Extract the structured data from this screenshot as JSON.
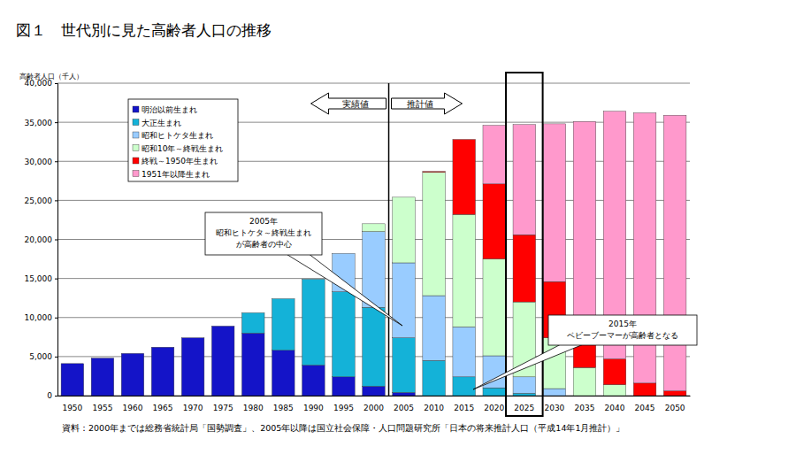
{
  "chart_data": {
    "type": "bar",
    "title": "図１　世代別に見た高齢者人口の推移",
    "y_label": "高齢者人口（千人）",
    "source": "資料：2000年までは総務省統計局「国勢調査」、2005年以降は国立社会保障・人口問題研究所「日本の将来推計人口（平成14年1月推計）」",
    "stacked": true,
    "grid": true,
    "legend": "top-left",
    "categories": [
      "1950",
      "1955",
      "1960",
      "1965",
      "1970",
      "1975",
      "1980",
      "1985",
      "1990",
      "1995",
      "2000",
      "2005",
      "2010",
      "2015",
      "2020",
      "2025",
      "2030",
      "2035",
      "2040",
      "2045",
      "2050"
    ],
    "ylim": [
      0,
      40000
    ],
    "yticks": [
      0,
      {
        "value": 5000,
        "label": "5,000"
      },
      {
        "value": 10000,
        "label": "10,000"
      },
      {
        "value": 15000,
        "label": "15,000"
      },
      {
        "value": 20000,
        "label": "20,000"
      },
      {
        "value": 25000,
        "label": "25,000"
      },
      {
        "value": 30000,
        "label": "30,000"
      },
      {
        "value": 35000,
        "label": "35,000"
      },
      {
        "value": 40000,
        "label": "40,000"
      }
    ],
    "series": [
      {
        "name": "明治以前生まれ",
        "color": "#1414c8",
        "values": [
          4100,
          4800,
          5400,
          6200,
          7400,
          8900,
          8000,
          5800,
          3900,
          2400,
          1200,
          400,
          0,
          0,
          0,
          0,
          0,
          0,
          0,
          0,
          0
        ]
      },
      {
        "name": "大正生まれ",
        "color": "#14b2d8",
        "values": [
          0,
          0,
          0,
          0,
          0,
          0,
          2600,
          6600,
          11000,
          10900,
          10100,
          7000,
          4500,
          2400,
          1000,
          300,
          0,
          0,
          0,
          0,
          0
        ]
      },
      {
        "name": "昭和ヒトケタ生まれ",
        "color": "#99ccff",
        "values": [
          0,
          0,
          0,
          0,
          0,
          0,
          0,
          0,
          0,
          4900,
          9700,
          9600,
          8300,
          6400,
          4100,
          2100,
          900,
          0,
          0,
          0,
          0
        ]
      },
      {
        "name": "昭和10年～終戦生まれ",
        "color": "#ccffcc",
        "values": [
          0,
          0,
          0,
          0,
          0,
          0,
          0,
          0,
          0,
          0,
          1000,
          8400,
          15800,
          14400,
          12400,
          9600,
          6500,
          3600,
          1400,
          0,
          0
        ]
      },
      {
        "name": "終戦～1950年生まれ",
        "color": "#ff0000",
        "values": [
          0,
          0,
          0,
          0,
          0,
          0,
          0,
          0,
          0,
          0,
          0,
          0,
          100,
          9600,
          9600,
          8600,
          7200,
          5500,
          3300,
          1600,
          600
        ]
      },
      {
        "name": "1951年以降生まれ",
        "color": "#ff99cc",
        "values": [
          0,
          0,
          0,
          0,
          0,
          0,
          0,
          0,
          0,
          0,
          0,
          0,
          0,
          0,
          7500,
          14100,
          20200,
          26000,
          31700,
          34600,
          35300
        ]
      }
    ],
    "annotations": [
      {
        "text": "実績値"
      },
      {
        "text": "推計値"
      },
      {
        "lines": [
          "2005年",
          "昭和ヒトケタ～終戦生まれ",
          "が高齢者の中心"
        ]
      },
      {
        "lines": [
          "2015年",
          "ベビーブーマーが高齢者となる"
        ]
      }
    ]
  }
}
